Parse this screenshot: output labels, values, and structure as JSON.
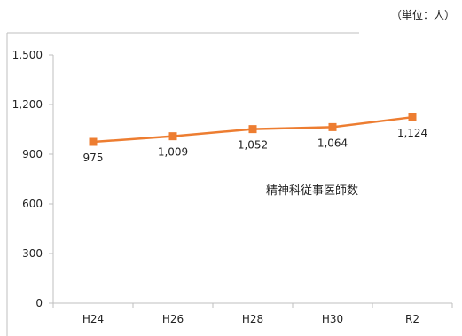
{
  "unit_label": "（単位：人）",
  "chart_data": {
    "type": "line",
    "categories": [
      "H24",
      "H26",
      "H28",
      "H30",
      "R2"
    ],
    "series": [
      {
        "name": "精神科従事医師数",
        "values": [
          975,
          1009,
          1052,
          1064,
          1124
        ],
        "color": "#ED7D31"
      }
    ],
    "y_ticks": [
      0,
      300,
      600,
      900,
      1200,
      1500
    ],
    "y_tick_labels": [
      "0",
      "300",
      "600",
      "900",
      "1,200",
      "1,500"
    ],
    "data_labels": [
      "975",
      "1,009",
      "1,052",
      "1,064",
      "1,124"
    ],
    "ylim": [
      0,
      1500
    ],
    "grid": false,
    "legend": "none"
  }
}
